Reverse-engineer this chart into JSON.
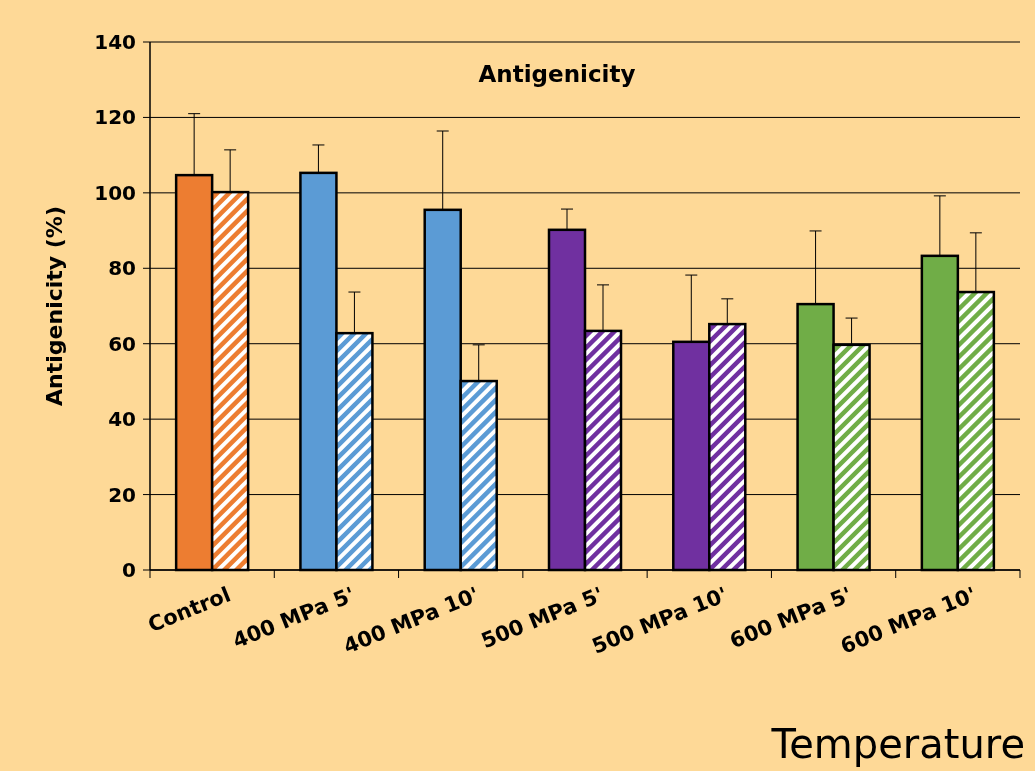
{
  "chart_data": {
    "type": "bar",
    "title": "Antigenicity",
    "ylabel": "Antigenicity (%)",
    "annotations": [
      "Temperature"
    ],
    "categories": [
      "Control",
      "400 MPa 5'",
      "400 MPa 10'",
      "500 MPa 5'",
      "500 MPa 10'",
      "600 MPa 5'",
      "600 MPa 10'"
    ],
    "series": [
      {
        "colors": [
          "#ed7d31",
          "#5b9bd5",
          "#5b9bd5",
          "#7030a0",
          "#7030a0",
          "#70ad47",
          "#70ad47"
        ],
        "values": [
          104.7,
          105.3,
          95.5,
          90.2,
          60.5,
          70.5,
          83.3
        ],
        "errors": [
          [
            104.7,
            121
          ],
          [
            105.3,
            112.7
          ],
          [
            95.5,
            116.4
          ],
          [
            90.2,
            95.7
          ],
          [
            60.5,
            78.2
          ],
          [
            70.5,
            89.9
          ],
          [
            83.3,
            99.2
          ]
        ]
      },
      {
        "colors": [
          "#ed7d31",
          "#5b9bd5",
          "#5b9bd5",
          "#7030a0",
          "#7030a0",
          "#70ad47",
          "#70ad47"
        ],
        "values": [
          100.2,
          62.8,
          50.1,
          63.4,
          65.2,
          59.7,
          73.7
        ],
        "errors": [
          [
            100.2,
            111.4
          ],
          [
            62.8,
            73.7
          ],
          [
            50.1,
            59.7
          ],
          [
            63.4,
            75.6
          ],
          [
            65.2,
            71.9
          ],
          [
            59.7,
            66.8
          ],
          [
            73.7,
            89.4
          ]
        ]
      }
    ],
    "ylim": [
      0,
      140
    ],
    "yticks": [
      0,
      20,
      40,
      60,
      80,
      100,
      120,
      140
    ],
    "grid": "y"
  }
}
